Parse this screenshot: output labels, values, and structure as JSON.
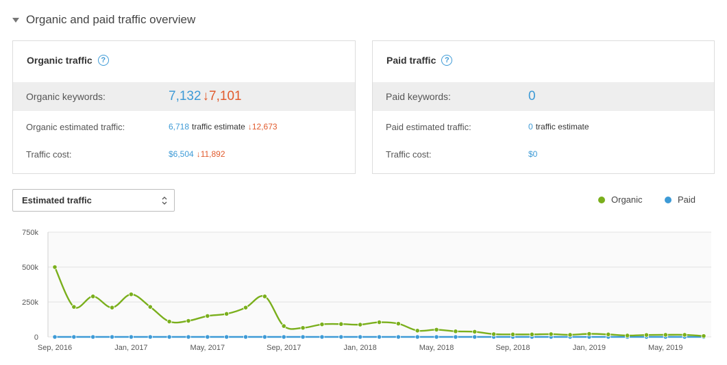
{
  "section": {
    "title": "Organic and paid traffic overview"
  },
  "organic_card": {
    "title": "Organic traffic",
    "keywords": {
      "label": "Organic keywords:",
      "value": "7,132",
      "prev": "7,101"
    },
    "traffic": {
      "label": "Organic estimated traffic:",
      "value": "6,718",
      "suffix": "traffic estimate",
      "prev": "12,673"
    },
    "cost": {
      "label": "Traffic cost:",
      "value": "$6,504",
      "prev": "11,892"
    }
  },
  "paid_card": {
    "title": "Paid traffic",
    "keywords": {
      "label": "Paid keywords:",
      "value": "0"
    },
    "traffic": {
      "label": "Paid estimated traffic:",
      "value": "0",
      "suffix": "traffic estimate"
    },
    "cost": {
      "label": "Traffic cost:",
      "value": "$0"
    }
  },
  "metric_select": {
    "value": "Estimated traffic"
  },
  "legend": [
    {
      "name": "Organic",
      "color": "#7aaf1c"
    },
    {
      "name": "Paid",
      "color": "#3d9ad6"
    }
  ],
  "chart_data": {
    "type": "line",
    "y_ticks": [
      "750k",
      "500k",
      "250k",
      "0"
    ],
    "ylim": [
      0,
      750000
    ],
    "x_tick_labels": [
      "Sep, 2016",
      "Jan, 2017",
      "May, 2017",
      "Sep, 2017",
      "Jan, 2018",
      "May, 2018",
      "Sep, 2018",
      "Jan, 2019",
      "May, 2019"
    ],
    "series": [
      {
        "name": "Organic",
        "color": "#7aaf1c",
        "values": [
          500000,
          215000,
          290000,
          210000,
          305000,
          215000,
          110000,
          115000,
          150000,
          165000,
          210000,
          290000,
          78000,
          65000,
          90000,
          92000,
          88000,
          105000,
          95000,
          45000,
          52000,
          40000,
          37000,
          20000,
          18000,
          18000,
          20000,
          15000,
          22000,
          18000,
          10000,
          14000,
          15000,
          15000,
          6700
        ]
      },
      {
        "name": "Paid",
        "color": "#3d9ad6",
        "values": [
          0,
          0,
          0,
          0,
          0,
          0,
          0,
          0,
          0,
          0,
          0,
          0,
          0,
          0,
          0,
          0,
          0,
          0,
          0,
          0,
          0,
          0,
          0,
          0,
          0,
          0,
          0,
          0,
          0,
          0,
          0,
          0,
          0,
          0,
          0
        ]
      }
    ]
  }
}
